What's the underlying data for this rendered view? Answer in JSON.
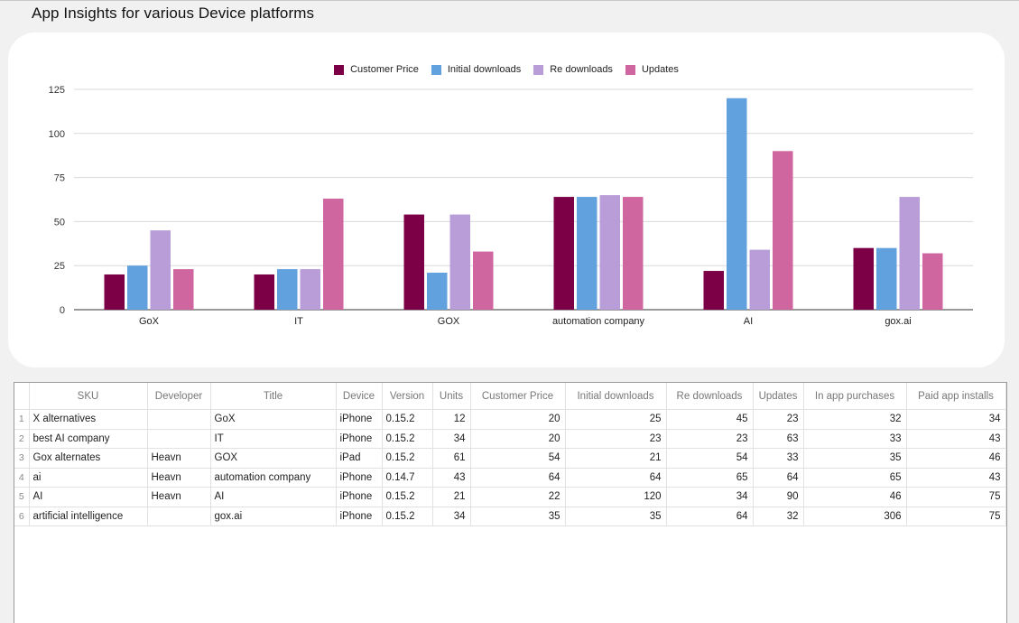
{
  "page": {
    "title": "App Insights for various Device platforms"
  },
  "colors": {
    "customer_price": "#7b0046",
    "initial_downloads": "#61a1de",
    "re_downloads": "#b89dd8",
    "updates": "#cf66a0",
    "gridline": "#d9d9d9",
    "axis": "#333333"
  },
  "chart_data": {
    "type": "bar",
    "title": "",
    "xlabel": "",
    "ylabel": "",
    "ylim": [
      0,
      125
    ],
    "yticks": [
      0,
      25,
      50,
      75,
      100,
      125
    ],
    "categories": [
      "GoX",
      "IT",
      "GOX",
      "automation company",
      "AI",
      "gox.ai"
    ],
    "series": [
      {
        "name": "Customer Price",
        "color": "#7b0046",
        "values": [
          20,
          20,
          54,
          64,
          22,
          35
        ]
      },
      {
        "name": "Initial downloads",
        "color": "#61a1de",
        "values": [
          25,
          23,
          21,
          64,
          120,
          35
        ]
      },
      {
        "name": "Re downloads",
        "color": "#b89dd8",
        "values": [
          45,
          23,
          54,
          65,
          34,
          64
        ]
      },
      {
        "name": "Updates",
        "color": "#cf66a0",
        "values": [
          23,
          63,
          33,
          64,
          90,
          32
        ]
      }
    ],
    "legend_position": "top-center",
    "grid": true
  },
  "table": {
    "columns": [
      "SKU",
      "Developer",
      "Title",
      "Device",
      "Version",
      "Units",
      "Customer Price",
      "Initial downloads",
      "Re downloads",
      "Updates",
      "In app purchases",
      "Paid app installs"
    ],
    "rows": [
      {
        "num": "1",
        "cells": [
          "X alternatives",
          "",
          "GoX",
          "iPhone",
          "0.15.2",
          "12",
          "20",
          "25",
          "45",
          "23",
          "32",
          "34"
        ]
      },
      {
        "num": "2",
        "cells": [
          "best AI company",
          "",
          "IT",
          "iPhone",
          "0.15.2",
          "34",
          "20",
          "23",
          "23",
          "63",
          "33",
          "43"
        ]
      },
      {
        "num": "3",
        "cells": [
          "Gox alternates",
          "Heavn",
          "GOX",
          "iPad",
          "0.15.2",
          "61",
          "54",
          "21",
          "54",
          "33",
          "35",
          "46"
        ]
      },
      {
        "num": "4",
        "cells": [
          "ai",
          "Heavn",
          "automation company",
          "iPhone",
          "0.14.7",
          "43",
          "64",
          "64",
          "65",
          "64",
          "65",
          "43"
        ]
      },
      {
        "num": "5",
        "cells": [
          "AI",
          "Heavn",
          "AI",
          "iPhone",
          "0.15.2",
          "21",
          "22",
          "120",
          "34",
          "90",
          "46",
          "75"
        ]
      },
      {
        "num": "6",
        "cells": [
          "artificial intelligence",
          "",
          "gox.ai",
          "iPhone",
          "0.15.2",
          "34",
          "35",
          "35",
          "64",
          "32",
          "306",
          "75"
        ]
      }
    ]
  }
}
